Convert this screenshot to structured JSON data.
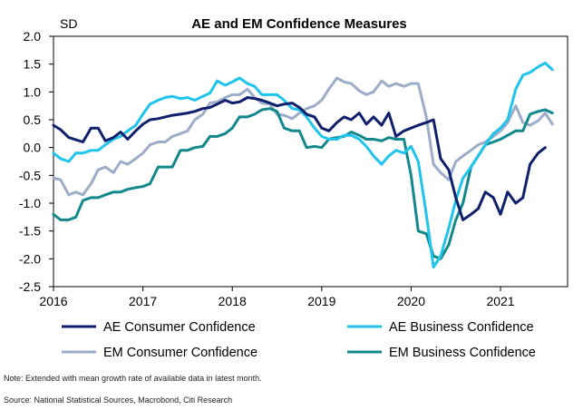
{
  "chart_data": {
    "type": "line",
    "title": "AE and EM Confidence Measures",
    "ylabel": "SD",
    "xlabel": "",
    "ylim": [
      -2.5,
      2.0
    ],
    "yticks": [
      2.0,
      1.5,
      1.0,
      0.5,
      0.0,
      -0.5,
      -1.0,
      -1.5,
      -2.0,
      -2.5
    ],
    "xlim": [
      2016,
      2021.75
    ],
    "xticks": [
      2016,
      2017,
      2018,
      2019,
      2020,
      2021
    ],
    "xtick_labels": [
      "2016",
      "2017",
      "2018",
      "2019",
      "2020",
      "2021"
    ],
    "legend_position": "bottom",
    "series": [
      {
        "name": "AE Consumer Confidence",
        "color": "#0f1f6b",
        "x": [
          2016.0,
          2016.08,
          2016.17,
          2016.25,
          2016.33,
          2016.42,
          2016.5,
          2016.58,
          2016.67,
          2016.75,
          2016.83,
          2016.92,
          2017.0,
          2017.08,
          2017.17,
          2017.25,
          2017.33,
          2017.42,
          2017.5,
          2017.58,
          2017.67,
          2017.75,
          2017.83,
          2017.92,
          2018.0,
          2018.08,
          2018.17,
          2018.25,
          2018.33,
          2018.42,
          2018.5,
          2018.58,
          2018.67,
          2018.75,
          2018.83,
          2018.92,
          2019.0,
          2019.08,
          2019.17,
          2019.25,
          2019.33,
          2019.42,
          2019.5,
          2019.58,
          2019.67,
          2019.75,
          2019.83,
          2019.92,
          2020.0,
          2020.08,
          2020.17,
          2020.25,
          2020.33,
          2020.42,
          2020.5,
          2020.58,
          2020.67,
          2020.75,
          2020.83,
          2020.92,
          2021.0,
          2021.08,
          2021.17,
          2021.25,
          2021.33,
          2021.42,
          2021.5
        ],
        "values": [
          0.4,
          0.32,
          0.18,
          0.14,
          0.1,
          0.35,
          0.35,
          0.12,
          0.18,
          0.28,
          0.15,
          0.3,
          0.42,
          0.5,
          0.52,
          0.55,
          0.58,
          0.6,
          0.62,
          0.65,
          0.7,
          0.72,
          0.78,
          0.85,
          0.8,
          0.82,
          0.9,
          0.88,
          0.85,
          0.8,
          0.75,
          0.78,
          0.8,
          0.72,
          0.6,
          0.55,
          0.35,
          0.3,
          0.45,
          0.55,
          0.5,
          0.62,
          0.42,
          0.55,
          0.4,
          0.62,
          0.2,
          0.3,
          0.35,
          0.4,
          0.45,
          0.5,
          -0.2,
          -0.4,
          -0.9,
          -1.3,
          -1.2,
          -1.1,
          -0.8,
          -0.9,
          -1.2,
          -0.8,
          -1.0,
          -0.9,
          -0.3,
          -0.1,
          0.0
        ]
      },
      {
        "name": "AE Business Confidence",
        "color": "#1fc4ec",
        "x": [
          2016.0,
          2016.08,
          2016.17,
          2016.25,
          2016.33,
          2016.42,
          2016.5,
          2016.58,
          2016.67,
          2016.75,
          2016.83,
          2016.92,
          2017.0,
          2017.08,
          2017.17,
          2017.25,
          2017.33,
          2017.42,
          2017.5,
          2017.58,
          2017.67,
          2017.75,
          2017.83,
          2017.92,
          2018.0,
          2018.08,
          2018.17,
          2018.25,
          2018.33,
          2018.42,
          2018.5,
          2018.58,
          2018.67,
          2018.75,
          2018.83,
          2018.92,
          2019.0,
          2019.08,
          2019.17,
          2019.25,
          2019.33,
          2019.42,
          2019.5,
          2019.58,
          2019.67,
          2019.75,
          2019.83,
          2019.92,
          2020.0,
          2020.08,
          2020.17,
          2020.25,
          2020.33,
          2020.42,
          2020.5,
          2020.58,
          2020.67,
          2020.75,
          2020.83,
          2020.92,
          2021.0,
          2021.08,
          2021.17,
          2021.25,
          2021.33,
          2021.42,
          2021.5,
          2021.58
        ],
        "values": [
          -0.1,
          -0.2,
          -0.25,
          -0.1,
          -0.1,
          -0.05,
          -0.05,
          0.05,
          0.15,
          0.2,
          0.3,
          0.4,
          0.6,
          0.78,
          0.85,
          0.9,
          0.92,
          0.88,
          0.9,
          0.85,
          0.92,
          0.98,
          1.2,
          1.12,
          1.18,
          1.25,
          1.15,
          1.1,
          0.95,
          0.95,
          0.95,
          0.85,
          0.7,
          0.68,
          0.55,
          0.35,
          0.2,
          0.15,
          0.15,
          0.22,
          0.22,
          0.15,
          0.02,
          -0.15,
          -0.3,
          -0.15,
          -0.05,
          -0.1,
          0.02,
          -0.25,
          -1.2,
          -2.15,
          -1.95,
          -1.45,
          -0.95,
          -0.55,
          -0.35,
          -0.15,
          0.05,
          0.25,
          0.35,
          0.5,
          1.05,
          1.3,
          1.35,
          1.45,
          1.52,
          1.4
        ]
      },
      {
        "name": "EM Consumer Confidence",
        "color": "#9cacc9",
        "x": [
          2016.0,
          2016.08,
          2016.17,
          2016.25,
          2016.33,
          2016.42,
          2016.5,
          2016.58,
          2016.67,
          2016.75,
          2016.83,
          2016.92,
          2017.0,
          2017.08,
          2017.17,
          2017.25,
          2017.33,
          2017.42,
          2017.5,
          2017.58,
          2017.67,
          2017.75,
          2017.83,
          2017.92,
          2018.0,
          2018.08,
          2018.17,
          2018.25,
          2018.33,
          2018.42,
          2018.5,
          2018.58,
          2018.67,
          2018.75,
          2018.83,
          2018.92,
          2019.0,
          2019.08,
          2019.17,
          2019.25,
          2019.33,
          2019.42,
          2019.5,
          2019.58,
          2019.67,
          2019.75,
          2019.83,
          2019.92,
          2020.0,
          2020.08,
          2020.17,
          2020.25,
          2020.33,
          2020.42,
          2020.5,
          2020.58,
          2020.67,
          2020.75,
          2020.83,
          2020.92,
          2021.0,
          2021.08,
          2021.17,
          2021.25,
          2021.33,
          2021.42,
          2021.5,
          2021.58
        ],
        "values": [
          -0.55,
          -0.58,
          -0.85,
          -0.8,
          -0.85,
          -0.65,
          -0.4,
          -0.35,
          -0.45,
          -0.25,
          -0.3,
          -0.2,
          -0.1,
          0.05,
          0.1,
          0.1,
          0.2,
          0.25,
          0.3,
          0.5,
          0.6,
          0.8,
          0.82,
          0.9,
          0.95,
          0.95,
          1.05,
          0.9,
          0.8,
          0.78,
          0.6,
          0.58,
          0.52,
          0.62,
          0.7,
          0.75,
          0.85,
          1.05,
          1.25,
          1.18,
          1.15,
          1.02,
          0.95,
          1.0,
          1.2,
          1.1,
          1.15,
          1.1,
          1.15,
          1.15,
          0.55,
          -0.3,
          -0.45,
          -0.58,
          -0.25,
          -0.15,
          -0.05,
          0.05,
          0.1,
          0.2,
          0.3,
          0.45,
          0.75,
          0.45,
          0.4,
          0.48,
          0.62,
          0.42
        ]
      },
      {
        "name": "EM Business Confidence",
        "color": "#12878c",
        "x": [
          2016.0,
          2016.08,
          2016.17,
          2016.25,
          2016.33,
          2016.42,
          2016.5,
          2016.58,
          2016.67,
          2016.75,
          2016.83,
          2016.92,
          2017.0,
          2017.08,
          2017.17,
          2017.25,
          2017.33,
          2017.42,
          2017.5,
          2017.58,
          2017.67,
          2017.75,
          2017.83,
          2017.92,
          2018.0,
          2018.08,
          2018.17,
          2018.25,
          2018.33,
          2018.42,
          2018.5,
          2018.58,
          2018.67,
          2018.75,
          2018.83,
          2018.92,
          2019.0,
          2019.08,
          2019.17,
          2019.25,
          2019.33,
          2019.42,
          2019.5,
          2019.58,
          2019.67,
          2019.75,
          2019.83,
          2019.92,
          2020.0,
          2020.08,
          2020.17,
          2020.25,
          2020.33,
          2020.42,
          2020.5,
          2020.58,
          2020.67,
          2020.75,
          2020.83,
          2020.92,
          2021.0,
          2021.08,
          2021.17,
          2021.25,
          2021.33,
          2021.42,
          2021.5,
          2021.58
        ],
        "values": [
          -1.2,
          -1.3,
          -1.3,
          -1.25,
          -0.95,
          -0.9,
          -0.9,
          -0.85,
          -0.8,
          -0.8,
          -0.75,
          -0.72,
          -0.7,
          -0.65,
          -0.35,
          -0.35,
          -0.35,
          -0.05,
          -0.05,
          0.0,
          0.02,
          0.2,
          0.2,
          0.25,
          0.35,
          0.55,
          0.55,
          0.6,
          0.68,
          0.7,
          0.65,
          0.35,
          0.3,
          0.3,
          0.0,
          0.02,
          0.0,
          0.15,
          0.18,
          0.2,
          0.28,
          0.22,
          0.15,
          0.15,
          0.12,
          0.18,
          0.15,
          0.15,
          -0.5,
          -1.5,
          -1.55,
          -1.95,
          -2.0,
          -1.75,
          -1.3,
          -1.0,
          -0.35,
          -0.15,
          0.05,
          0.1,
          0.15,
          0.22,
          0.3,
          0.3,
          0.6,
          0.65,
          0.68,
          0.62
        ]
      }
    ]
  },
  "notes": {
    "note": "Note: Extended with mean growth rate of available data in latest month.",
    "source": "Source: National Statistical Sources, Macrobond, Citi Research"
  }
}
